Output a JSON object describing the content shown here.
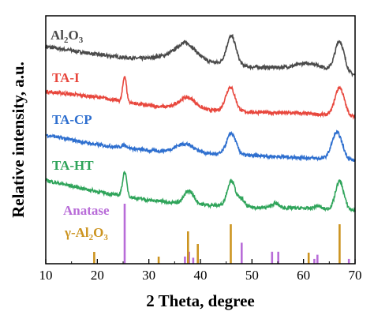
{
  "chart_data": {
    "type": "line",
    "xlabel": "2 Theta, degree",
    "ylabel": "Relative intensity, a.u.",
    "xlim": [
      10,
      70
    ],
    "xticks": [
      "10",
      "20",
      "30",
      "40",
      "50",
      "60",
      "70"
    ],
    "yticks_shown": false,
    "legend_placement": "inline-labels-left",
    "series": [
      {
        "name": "Al2O3",
        "name_main": "Al",
        "name_sub1": "2",
        "name_mid": "O",
        "name_sub2": "3",
        "color": "#4a4a4a",
        "offset": 3,
        "baseline": {
          "x": [
            10,
            20,
            30,
            40,
            50,
            60,
            70
          ],
          "y": [
            1.0,
            0.72,
            0.52,
            0.5,
            0.28,
            0.24,
            0.0
          ]
        },
        "peaks": [
          {
            "center": 37.2,
            "height": 0.55,
            "width": 1.8
          },
          {
            "center": 33.5,
            "height": 0.15,
            "width": 3.0
          },
          {
            "center": 46.0,
            "height": 1.0,
            "width": 0.9
          },
          {
            "center": 61.5,
            "height": 0.2,
            "width": 2.5
          },
          {
            "center": 67.0,
            "height": 1.1,
            "width": 0.9
          }
        ]
      },
      {
        "name": "TA-I",
        "color": "#e8473d",
        "offset": 2,
        "baseline": {
          "x": [
            10,
            20,
            30,
            40,
            50,
            60,
            70
          ],
          "y": [
            0.95,
            0.75,
            0.45,
            0.3,
            0.22,
            0.18,
            0.05
          ]
        },
        "peaks": [
          {
            "center": 25.3,
            "height": 0.9,
            "width": 0.35
          },
          {
            "center": 37.5,
            "height": 0.4,
            "width": 1.6
          },
          {
            "center": 45.8,
            "height": 0.85,
            "width": 0.9
          },
          {
            "center": 67.0,
            "height": 1.0,
            "width": 0.9
          }
        ]
      },
      {
        "name": "TA-CP",
        "color": "#2e6fcf",
        "offset": 1,
        "baseline": {
          "x": [
            10,
            20,
            30,
            40,
            50,
            60,
            70
          ],
          "y": [
            0.95,
            0.6,
            0.4,
            0.3,
            0.22,
            0.15,
            0.05
          ]
        },
        "peaks": [
          {
            "center": 25.3,
            "height": 0.1,
            "width": 0.5
          },
          {
            "center": 37.0,
            "height": 0.3,
            "width": 1.8
          },
          {
            "center": 46.0,
            "height": 0.75,
            "width": 0.9
          },
          {
            "center": 66.5,
            "height": 0.95,
            "width": 1.0
          }
        ]
      },
      {
        "name": "TA-HT",
        "color": "#2fa45a",
        "offset": 0,
        "baseline": {
          "x": [
            10,
            20,
            30,
            40,
            50,
            60,
            70
          ],
          "y": [
            1.1,
            0.7,
            0.4,
            0.25,
            0.15,
            0.12,
            0.05
          ]
        },
        "peaks": [
          {
            "center": 25.3,
            "height": 0.85,
            "width": 0.4
          },
          {
            "center": 37.8,
            "height": 0.45,
            "width": 0.9
          },
          {
            "center": 48.0,
            "height": 0.25,
            "width": 0.6
          },
          {
            "center": 46.0,
            "height": 0.9,
            "width": 0.8
          },
          {
            "center": 54.5,
            "height": 0.15,
            "width": 0.7
          },
          {
            "center": 62.7,
            "height": 0.1,
            "width": 0.6
          },
          {
            "center": 67.0,
            "height": 1.0,
            "width": 0.8
          }
        ]
      }
    ],
    "references": [
      {
        "name": "Anatase",
        "color": "#b86cd8",
        "lines": [
          {
            "x": 25.3,
            "i": 1.0
          },
          {
            "x": 37.0,
            "i": 0.12
          },
          {
            "x": 37.8,
            "i": 0.2
          },
          {
            "x": 38.6,
            "i": 0.1
          },
          {
            "x": 48.0,
            "i": 0.35
          },
          {
            "x": 53.9,
            "i": 0.2
          },
          {
            "x": 55.1,
            "i": 0.2
          },
          {
            "x": 62.1,
            "i": 0.08
          },
          {
            "x": 62.7,
            "i": 0.15
          },
          {
            "x": 68.8,
            "i": 0.08
          }
        ]
      },
      {
        "name": "γ-Al2O3",
        "name_main": "γ-Al",
        "name_sub1": "2",
        "name_mid": "O",
        "name_sub2": "3",
        "color": "#cc9420",
        "lines": [
          {
            "x": 19.4,
            "i": 0.3
          },
          {
            "x": 31.9,
            "i": 0.18
          },
          {
            "x": 37.6,
            "i": 0.82
          },
          {
            "x": 39.5,
            "i": 0.5
          },
          {
            "x": 45.9,
            "i": 1.0
          },
          {
            "x": 61.0,
            "i": 0.28
          },
          {
            "x": 67.0,
            "i": 1.0
          }
        ]
      }
    ]
  }
}
